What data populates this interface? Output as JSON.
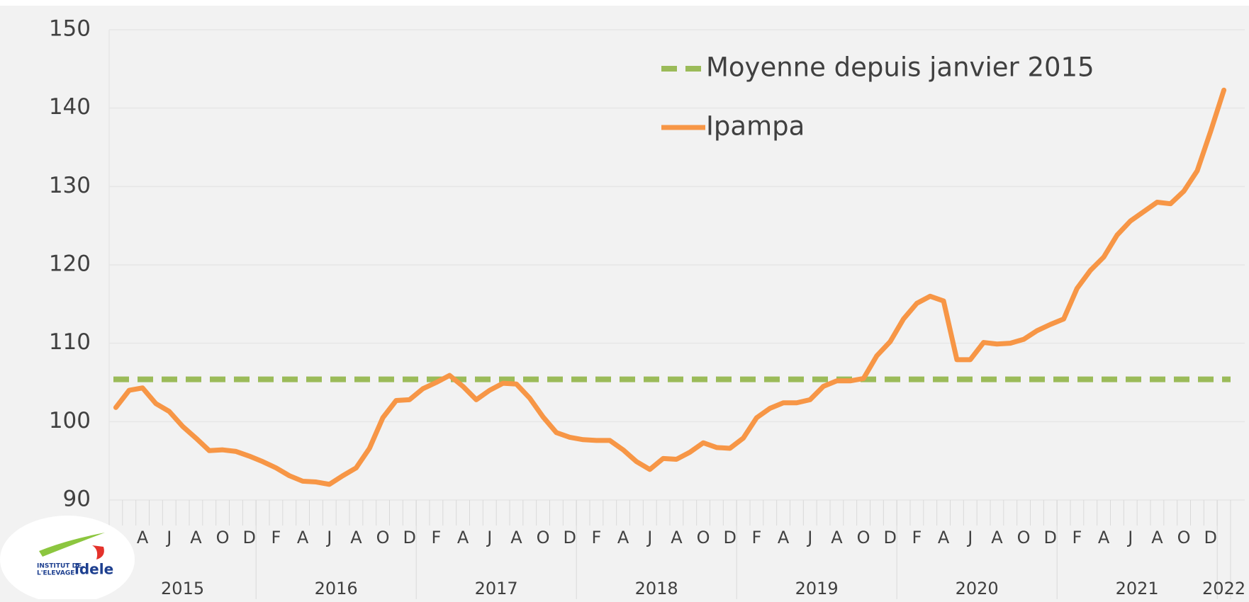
{
  "chart_data": {
    "type": "line",
    "categories": [
      null,
      null,
      "A",
      null,
      "J",
      null,
      "A",
      null,
      "O",
      null,
      "D",
      null,
      "F",
      null,
      "A",
      null,
      "J",
      null,
      "A",
      null,
      "O",
      null,
      "D",
      null,
      "F",
      null,
      "A",
      null,
      "J",
      null,
      "A",
      null,
      "O",
      null,
      "D",
      null,
      "F",
      null,
      "A",
      null,
      "J",
      null,
      "A",
      null,
      "O",
      null,
      "D",
      null,
      "F",
      null,
      "A",
      null,
      "J",
      null,
      "A",
      null,
      "O",
      null,
      "D",
      null,
      "F",
      null,
      "A",
      null,
      "J",
      null,
      "A",
      null,
      "O",
      null,
      "D",
      null,
      "F",
      null,
      "A",
      null,
      "J",
      null,
      "A",
      null,
      "O",
      null,
      "D",
      null
    ],
    "year_groups": [
      {
        "label": "2015",
        "months": 11
      },
      {
        "label": "2016",
        "months": 12
      },
      {
        "label": "2017",
        "months": 12
      },
      {
        "label": "2018",
        "months": 12
      },
      {
        "label": "2019",
        "months": 12
      },
      {
        "label": "2020",
        "months": 12
      },
      {
        "label": "2021",
        "months": 12
      },
      {
        "label": "2022",
        "months": 1
      }
    ],
    "series": [
      {
        "name": "Ipampa",
        "color": "#f79646",
        "values": [
          101.8,
          104.0,
          104.3,
          102.3,
          101.3,
          99.4,
          97.9,
          96.3,
          96.4,
          96.2,
          95.6,
          94.9,
          94.1,
          93.1,
          92.4,
          92.3,
          92.0,
          93.1,
          94.1,
          96.6,
          100.5,
          102.7,
          102.8,
          104.2,
          105.0,
          105.9,
          104.5,
          102.8,
          104.0,
          104.9,
          104.8,
          103.0,
          100.6,
          98.6,
          98.0,
          97.7,
          97.6,
          97.6,
          96.4,
          94.9,
          93.9,
          95.3,
          95.2,
          96.1,
          97.3,
          96.7,
          96.6,
          97.9,
          100.5,
          101.7,
          102.4,
          102.4,
          102.8,
          104.5,
          105.2,
          105.2,
          105.5,
          108.4,
          110.2,
          113.1,
          115.1,
          116.0,
          115.4,
          107.9,
          107.9,
          110.1,
          109.9,
          110.0,
          110.5,
          111.6,
          112.4,
          113.1,
          117.0,
          119.3,
          121.0,
          123.8,
          125.6,
          126.8,
          128.0,
          127.8,
          129.4,
          132.0,
          137.0,
          142.3
        ]
      }
    ],
    "reference_line": {
      "name": "Moyenne depuis janvier 2015",
      "value": 105.4,
      "color": "#9bbb59"
    },
    "ylim": [
      90,
      150
    ],
    "yticks": [
      90,
      100,
      110,
      120,
      130,
      140,
      150
    ],
    "grid": true
  },
  "logo": {
    "line1": "INSTITUT DE",
    "line2": "L'ELEVAGE",
    "brand": "idele"
  }
}
